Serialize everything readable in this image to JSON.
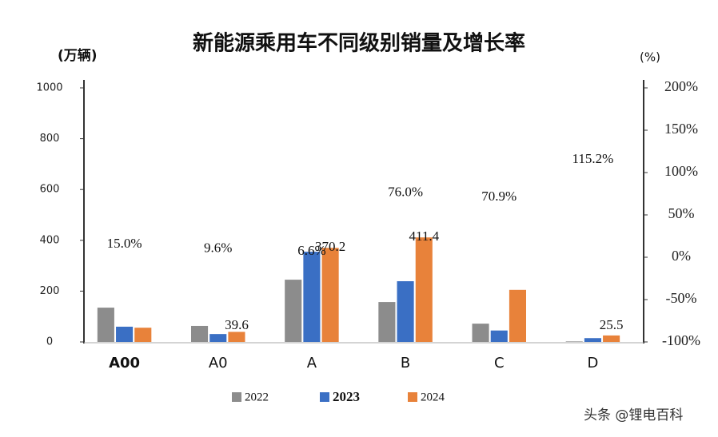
{
  "chart_data": {
    "type": "bar",
    "title": "新能源乘用车不同级别销量及增长率",
    "y_label": "(万辆)",
    "y2_label": "(%)",
    "categories": [
      "A00",
      "A0",
      "A",
      "B",
      "C",
      "D"
    ],
    "series": [
      {
        "name": "2022",
        "color": "#8c8c8c",
        "values": [
          135,
          63,
          245,
          157,
          72,
          2
        ]
      },
      {
        "name": "2023",
        "color": "#3a6fc4",
        "values": [
          60,
          31,
          355,
          239,
          45,
          15
        ]
      },
      {
        "name": "2024",
        "color": "#e8823a",
        "values": [
          56,
          39.6,
          370.2,
          411.4,
          205,
          25.5
        ],
        "value_labels": [
          null,
          "39.6",
          "370.2",
          "411.4",
          null,
          "25.5"
        ]
      }
    ],
    "growth": {
      "axis": "y2",
      "values": [
        15.0,
        9.6,
        6.6,
        76.0,
        70.9,
        115.2
      ],
      "value_labels": [
        "15.0%",
        "9.6%",
        "6.6%",
        "76.0%",
        "70.9%",
        "115.2%"
      ]
    },
    "ylim": [
      0,
      1000
    ],
    "yticks": [
      0,
      200,
      400,
      600,
      800,
      1000
    ],
    "y2lim": [
      -100,
      200
    ],
    "y2ticks": [
      {
        "value": -100,
        "label": "-100%"
      },
      {
        "value": -50,
        "label": "-50%"
      },
      {
        "value": 0,
        "label": "0%"
      },
      {
        "value": 50,
        "label": "50%"
      },
      {
        "value": 100,
        "label": "100%"
      },
      {
        "value": 150,
        "label": "150%"
      },
      {
        "value": 200,
        "label": "200%"
      }
    ],
    "grid": false,
    "legend": "bottom",
    "watermark": "头条 @锂电百科"
  }
}
